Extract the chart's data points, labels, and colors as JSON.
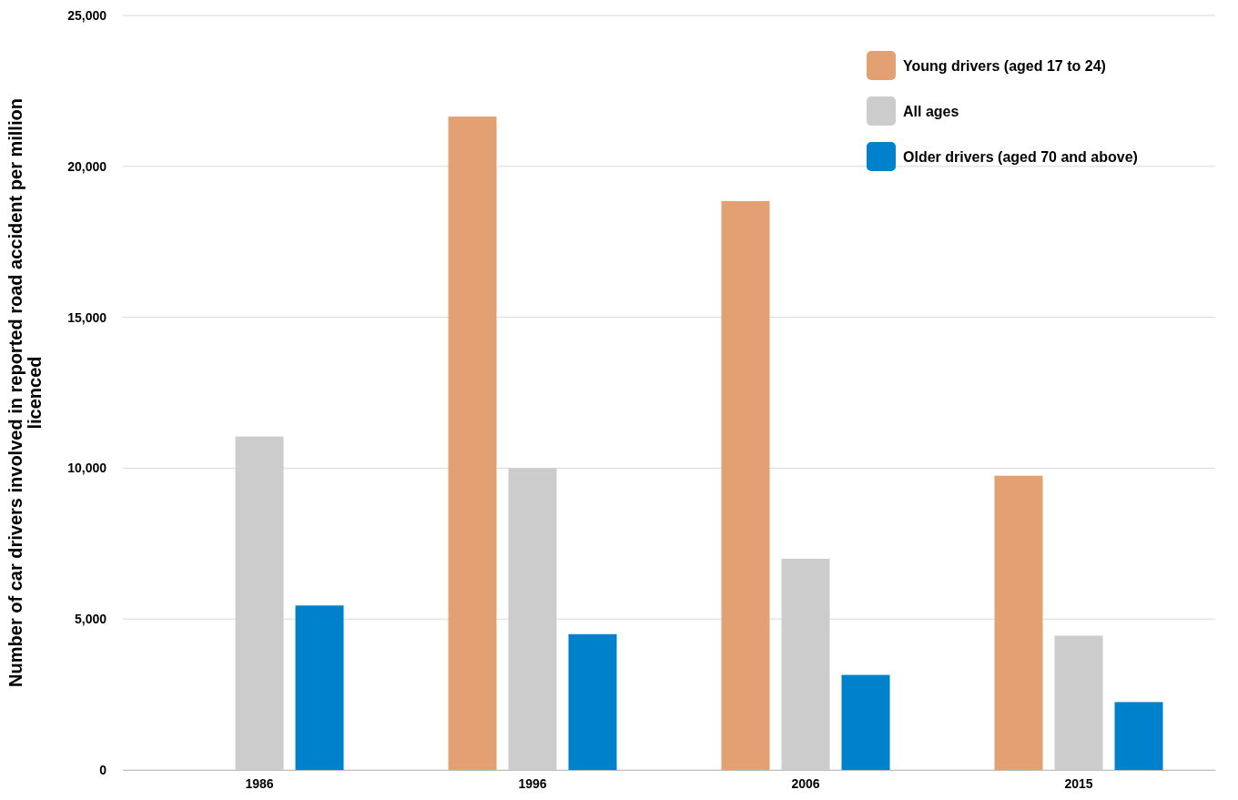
{
  "chart_data": {
    "type": "bar",
    "ylabel": "Number of car drivers involved in reported road accident per million licenced",
    "categories": [
      "1986",
      "1996",
      "2006",
      "2015"
    ],
    "series": [
      {
        "name": "Young drivers (aged 17 to 24)",
        "color": "#e3a072",
        "values": [
          null,
          21650,
          18850,
          9750
        ]
      },
      {
        "name": "All ages",
        "color": "#cccccc",
        "values": [
          11050,
          10000,
          7000,
          4450
        ]
      },
      {
        "name": "Older drivers (aged 70 and above)",
        "color": "#0081cc",
        "values": [
          5450,
          4500,
          3150,
          2250
        ]
      }
    ],
    "ylim": [
      0,
      25000
    ],
    "yticks": [
      {
        "value": 0,
        "label": "0"
      },
      {
        "value": 5000,
        "label": "5,000"
      },
      {
        "value": 10000,
        "label": "10,000"
      },
      {
        "value": 15000,
        "label": "15,000"
      },
      {
        "value": 20000,
        "label": "20,000"
      },
      {
        "value": 25000,
        "label": "25,000"
      }
    ],
    "grid": "y",
    "legend": "top right"
  }
}
